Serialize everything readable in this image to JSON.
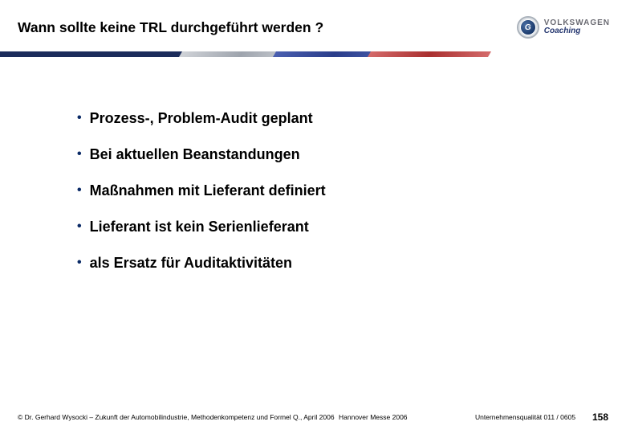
{
  "title": "Wann sollte keine TRL durchgeführt werden ?",
  "logo": {
    "brand": "VOLKSWAGEN",
    "sub": "Coaching",
    "glyph": "G"
  },
  "stripes": {
    "navy": "#1b2c5b",
    "silver_gradient": [
      "#d0d3d8",
      "#9ea4ad"
    ],
    "blue_gradient": [
      "#4a5fb0",
      "#2a3d8a"
    ],
    "red_gradient": [
      "#d46a6a",
      "#a92f2f"
    ]
  },
  "bullets": [
    "Prozess-, Problem-Audit geplant",
    "Bei aktuellen Beanstandungen",
    "Maßnahmen mit Lieferant definiert",
    "Lieferant ist kein Serienlieferant",
    "als Ersatz für Auditaktivitäten"
  ],
  "bullet_color": "#0a2a66",
  "footer": {
    "left": "© Dr. Gerhard Wysocki – Zukunft der Automobilindustrie, Methodenkompetenz und Formel Q., April 2006",
    "center": "Hannover Messe 2006",
    "right": "Unternehmensqualität 011 / 0605",
    "page": "158"
  },
  "typography": {
    "title_fontsize": 17.5,
    "bullet_fontsize": 18,
    "footer_fontsize": 8.5,
    "page_fontsize": 12,
    "font_family": "Arial"
  },
  "colors": {
    "background": "#ffffff",
    "text": "#000000",
    "logo_brand": "#6b6b73",
    "logo_sub": "#23356e"
  }
}
